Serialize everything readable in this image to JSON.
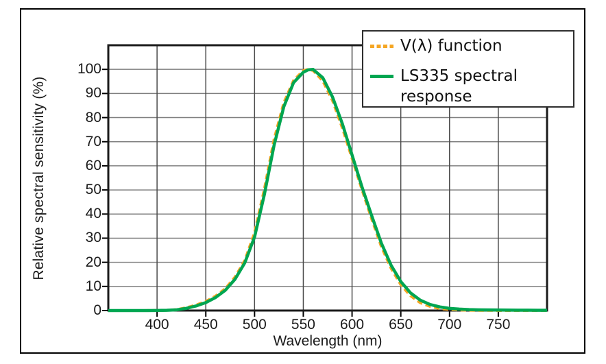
{
  "legend": {
    "items": [
      {
        "label": "V(λ) function",
        "line_style": "dashed",
        "color": "#F5A623"
      },
      {
        "label": "LS335 spectral response",
        "line_style": "solid",
        "color": "#00A651"
      }
    ]
  },
  "colors": {
    "background": "#ffffff",
    "grid_horizontal": "#7f7f7f",
    "grid_vertical": "#4a4a4a",
    "axis_border": "#1a1a1a",
    "tick": "#000000"
  },
  "chart_data": {
    "type": "line",
    "title": "",
    "xlabel": "Wavelength (nm)",
    "ylabel": "Relative spectral sensitivity (%)",
    "xlim": [
      350,
      800
    ],
    "ylim": [
      0,
      110
    ],
    "xticks": [
      400,
      450,
      500,
      550,
      600,
      650,
      700,
      750
    ],
    "yticks": [
      0,
      10,
      20,
      30,
      40,
      50,
      60,
      70,
      80,
      90,
      100
    ],
    "grid": true,
    "legend_position": "top-right",
    "x": [
      350,
      360,
      370,
      380,
      390,
      400,
      410,
      420,
      430,
      440,
      450,
      460,
      470,
      480,
      490,
      500,
      510,
      520,
      530,
      540,
      550,
      555,
      560,
      570,
      580,
      590,
      600,
      610,
      620,
      630,
      640,
      650,
      660,
      670,
      680,
      690,
      700,
      710,
      720,
      730,
      740,
      750,
      760,
      770,
      780,
      790,
      800
    ],
    "series": [
      {
        "name": "V(λ) function",
        "color": "#F5A623",
        "line_style": "dashed",
        "values": [
          0,
          0,
          0,
          0,
          0.02,
          0.04,
          0.12,
          0.4,
          1.2,
          2.3,
          3.8,
          6,
          9.1,
          13.9,
          20.8,
          32.3,
          50.3,
          71,
          86.2,
          95.4,
          99.5,
          100,
          99.5,
          95.2,
          87,
          75.7,
          63.1,
          50.3,
          38.1,
          26.5,
          17.5,
          10.7,
          6.1,
          3.2,
          1.7,
          0.8,
          0.4,
          0.2,
          0.1,
          0.05,
          0.03,
          0.01,
          0,
          0,
          0,
          0,
          0
        ]
      },
      {
        "name": "LS335 spectral response",
        "color": "#00A651",
        "line_style": "solid",
        "values": [
          0,
          0,
          0,
          0,
          0.01,
          0.03,
          0.1,
          0.3,
          0.9,
          1.9,
          3.3,
          5.4,
          8.4,
          13,
          19.8,
          30.5,
          48,
          68.5,
          84.5,
          94.5,
          98.8,
          99.8,
          100,
          96.5,
          88.5,
          77.5,
          64.5,
          51.5,
          39.5,
          28,
          18.8,
          12,
          7.3,
          4.3,
          2.5,
          1.5,
          0.9,
          0.6,
          0.4,
          0.3,
          0.25,
          0.2,
          0.17,
          0.15,
          0.13,
          0.12,
          0.1
        ]
      }
    ]
  }
}
